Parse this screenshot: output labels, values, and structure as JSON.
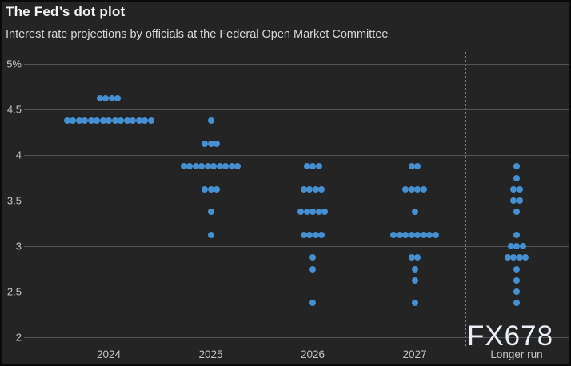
{
  "chart_data": {
    "type": "scatter",
    "variant": "dot-plot",
    "title": "The Fed’s dot plot",
    "subtitle": "Interest rate projections by officials at the Federal Open Market Committee",
    "watermark": "FX678",
    "legend_position": "none",
    "grid": true,
    "y_axis": {
      "ticks": [
        "5%",
        "4.5",
        "4",
        "3.5",
        "3",
        "2.5",
        "2"
      ],
      "values": [
        5,
        4.5,
        4,
        3.5,
        3,
        2.5,
        2
      ],
      "ylim": [
        2,
        5
      ],
      "unit": "percent"
    },
    "categories": [
      "2024",
      "2025",
      "2026",
      "2027",
      "Longer run"
    ],
    "series": [
      {
        "category": "2024",
        "dots": [
          {
            "rate": 4.625,
            "count": 4
          },
          {
            "rate": 4.375,
            "count": 15
          }
        ]
      },
      {
        "category": "2025",
        "dots": [
          {
            "rate": 4.375,
            "count": 1
          },
          {
            "rate": 4.125,
            "count": 3
          },
          {
            "rate": 3.875,
            "count": 10
          },
          {
            "rate": 3.625,
            "count": 3
          },
          {
            "rate": 3.375,
            "count": 1
          },
          {
            "rate": 3.125,
            "count": 1
          }
        ]
      },
      {
        "category": "2026",
        "dots": [
          {
            "rate": 3.875,
            "count": 3
          },
          {
            "rate": 3.625,
            "count": 4
          },
          {
            "rate": 3.375,
            "count": 5
          },
          {
            "rate": 3.125,
            "count": 4
          },
          {
            "rate": 2.875,
            "count": 1
          },
          {
            "rate": 2.75,
            "count": 1
          },
          {
            "rate": 2.375,
            "count": 1
          }
        ]
      },
      {
        "category": "2027",
        "dots": [
          {
            "rate": 3.875,
            "count": 2
          },
          {
            "rate": 3.625,
            "count": 4
          },
          {
            "rate": 3.375,
            "count": 1
          },
          {
            "rate": 3.125,
            "count": 8
          },
          {
            "rate": 2.875,
            "count": 2
          },
          {
            "rate": 2.75,
            "count": 1
          },
          {
            "rate": 2.625,
            "count": 1
          },
          {
            "rate": 2.375,
            "count": 1
          }
        ]
      },
      {
        "category": "Longer run",
        "dots": [
          {
            "rate": 3.875,
            "count": 1
          },
          {
            "rate": 3.75,
            "count": 1
          },
          {
            "rate": 3.625,
            "count": 2
          },
          {
            "rate": 3.5,
            "count": 2
          },
          {
            "rate": 3.375,
            "count": 1
          },
          {
            "rate": 3.125,
            "count": 1
          },
          {
            "rate": 3.0,
            "count": 3
          },
          {
            "rate": 2.875,
            "count": 4
          },
          {
            "rate": 2.75,
            "count": 1
          },
          {
            "rate": 2.625,
            "count": 1
          },
          {
            "rate": 2.5,
            "count": 1
          },
          {
            "rate": 2.375,
            "count": 1
          }
        ]
      }
    ],
    "colors": {
      "dot": "#4590d2",
      "background": "#242424",
      "gridline": "#535353",
      "divider": "#828282",
      "title": "#f4f4f4",
      "subtitle": "#d9d9d9",
      "tick_label": "#c6c6c6",
      "watermark": "#e9eef7"
    }
  }
}
